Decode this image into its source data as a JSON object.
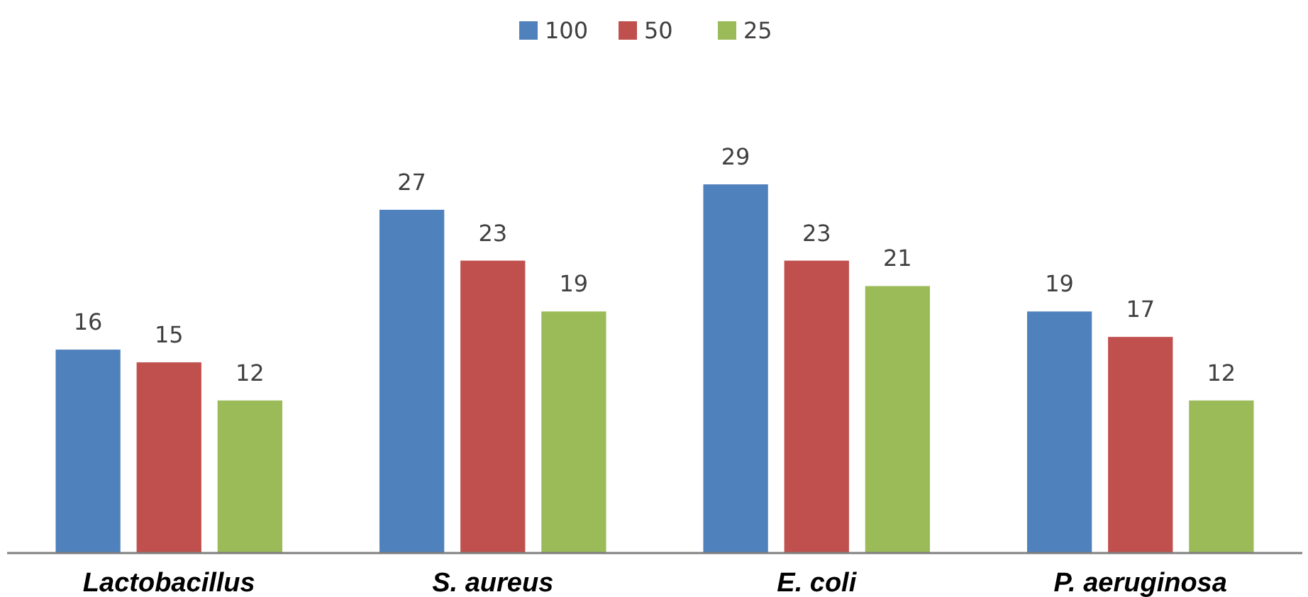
{
  "chart_data": {
    "type": "bar",
    "categories": [
      "Lactobacillus",
      "S. aureus",
      "E. coli",
      "P. aeruginosa"
    ],
    "series": [
      {
        "name": "100",
        "color": "#4f81bd",
        "values": [
          16,
          27,
          29,
          19
        ]
      },
      {
        "name": "50",
        "color": "#c0504d",
        "values": [
          15,
          23,
          23,
          17
        ]
      },
      {
        "name": "25",
        "color": "#9bbb59",
        "values": [
          12,
          19,
          21,
          12
        ]
      }
    ],
    "data_labels": true,
    "legend": "top",
    "grid": false
  }
}
